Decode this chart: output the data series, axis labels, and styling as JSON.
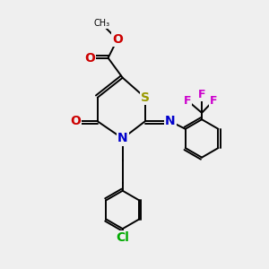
{
  "bg_color": "#efefef",
  "bond_color": "#000000",
  "bond_width": 1.4,
  "S_color": "#999900",
  "N_color": "#0000cc",
  "O_color": "#cc0000",
  "F_color": "#cc00cc",
  "Cl_color": "#00aa00",
  "font_size": 8,
  "fig_width": 3.0,
  "fig_height": 3.0,
  "dpi": 100,
  "xlim": [
    0,
    10
  ],
  "ylim": [
    0,
    10
  ]
}
